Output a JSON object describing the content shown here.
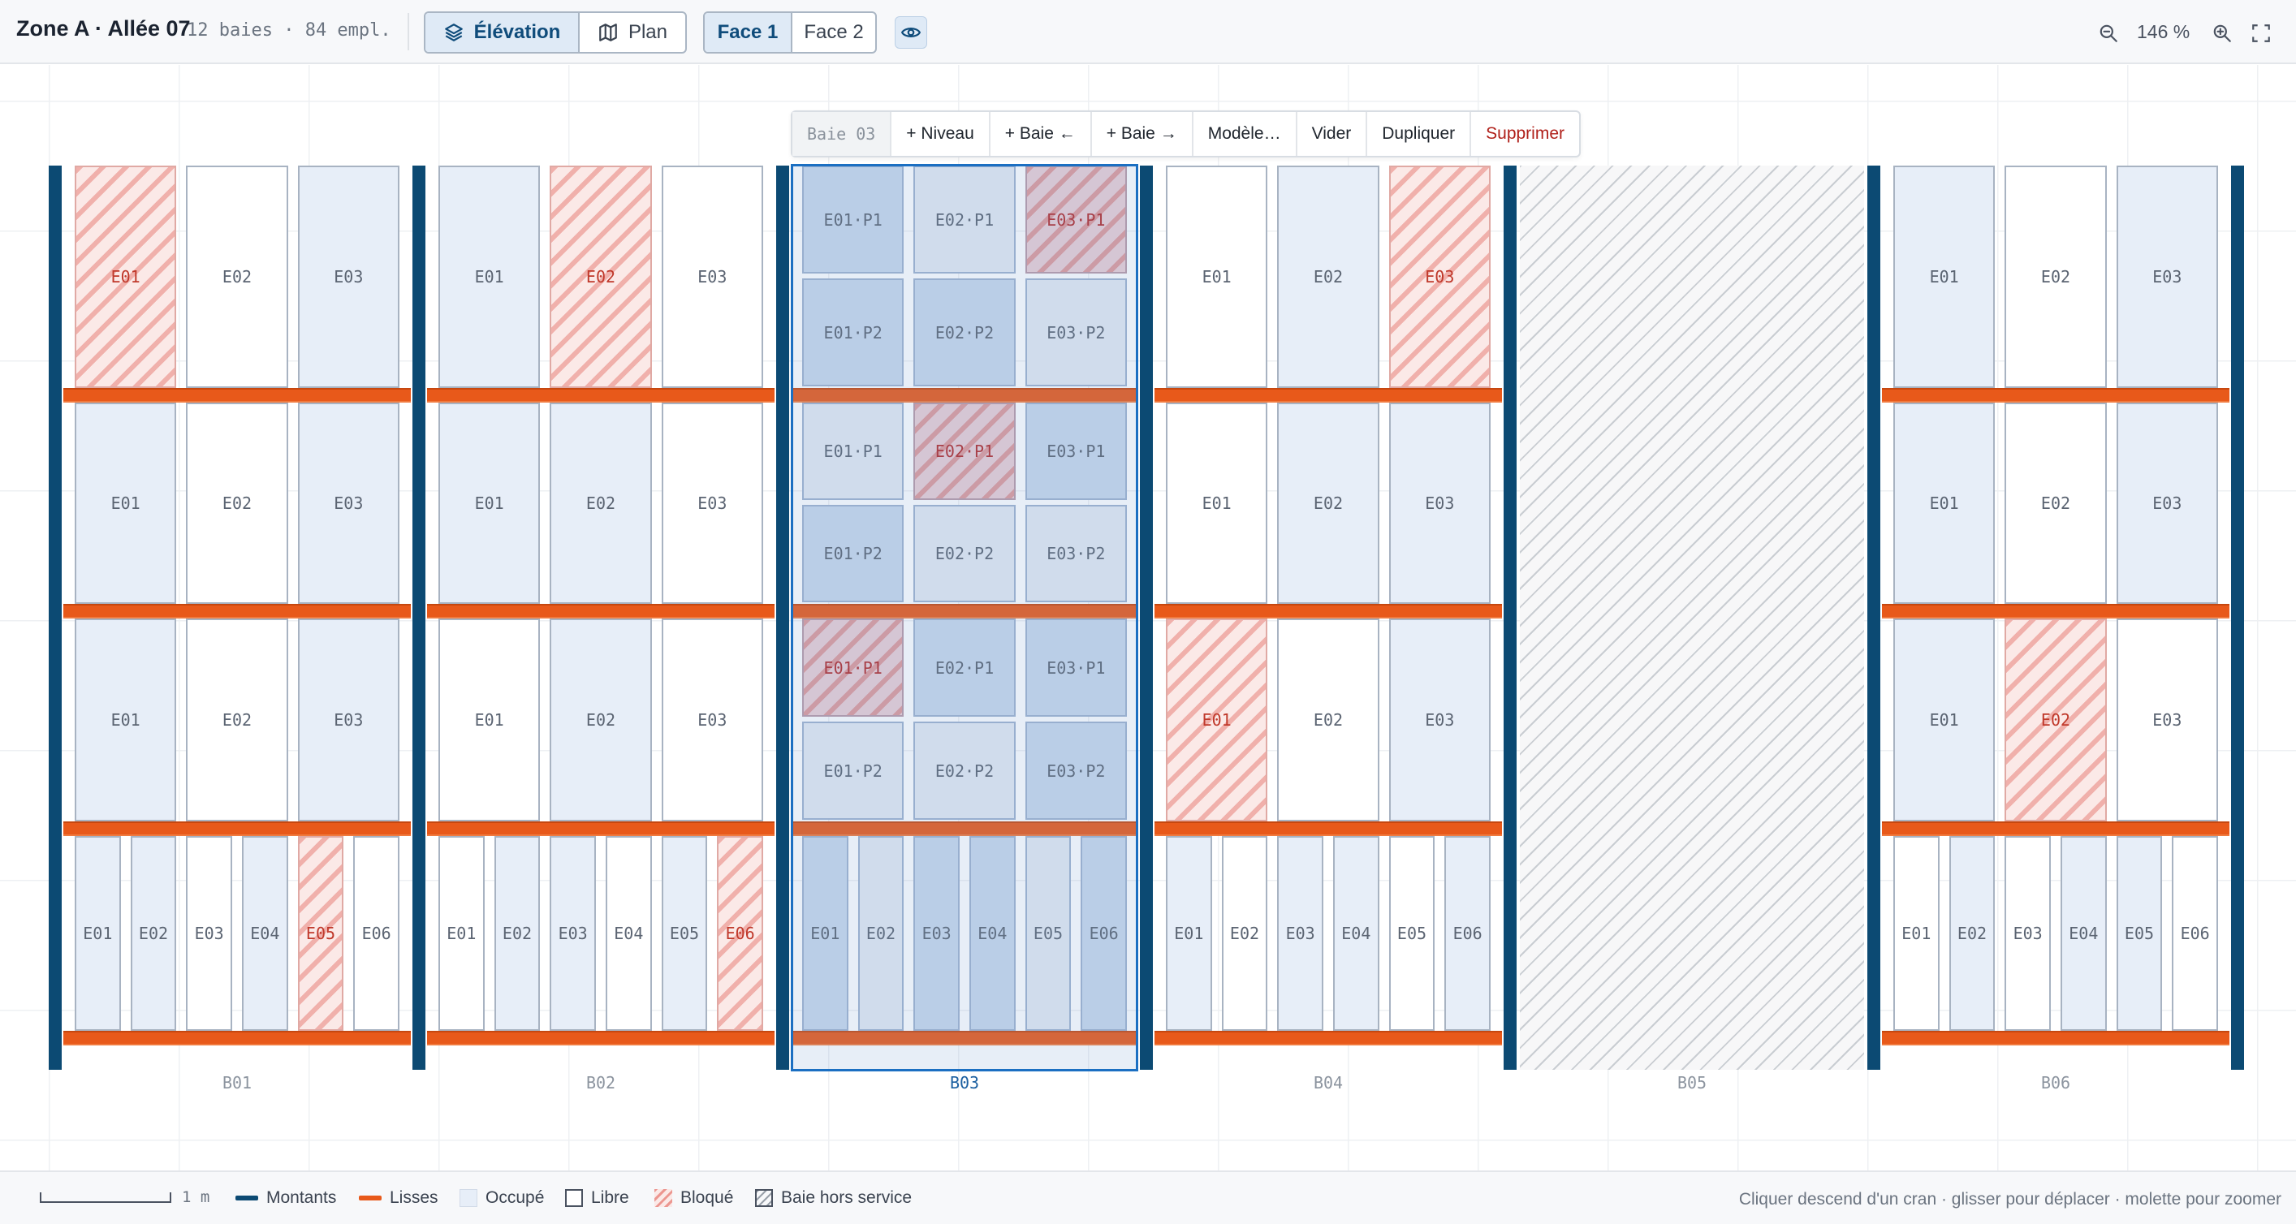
{
  "header": {
    "title": "Zone A · Allée 07",
    "subtitle": "12 baies · 84 empl.",
    "view_toggle": [
      {
        "label": "Élévation",
        "icon": "layers-icon",
        "active": true
      },
      {
        "label": "Plan",
        "icon": "map-icon",
        "active": false
      }
    ],
    "face_toggle": [
      {
        "label": "Face 1",
        "active": true
      },
      {
        "label": "Face 2",
        "active": false
      }
    ],
    "visibility_icon": "eye-icon",
    "zoom": {
      "level": "146 %",
      "out_icon": "zoom-out-icon",
      "in_icon": "zoom-in-icon",
      "fit_icon": "fullscreen-icon"
    }
  },
  "context_toolbar": {
    "bay": "Baie 03",
    "actions": [
      "+ Niveau",
      "+ Baie ←",
      "+ Baie →",
      "Modèle…",
      "Vider",
      "Dupliquer",
      "Supprimer"
    ]
  },
  "rack": {
    "selected_bay": "B03",
    "bays": [
      {
        "label": "B01",
        "out_of_service": false,
        "levels": [
          {
            "slots": [
              {
                "name": "E01",
                "status": "blocked"
              },
              {
                "name": "E02",
                "status": "free"
              },
              {
                "name": "E03",
                "status": "occupied"
              }
            ]
          },
          {
            "slots": [
              {
                "name": "E01",
                "status": "occupied"
              },
              {
                "name": "E02",
                "status": "free"
              },
              {
                "name": "E03",
                "status": "occupied"
              }
            ]
          },
          {
            "slots": [
              {
                "name": "E01",
                "status": "occupied"
              },
              {
                "name": "E02",
                "status": "free"
              },
              {
                "name": "E03",
                "status": "occupied"
              }
            ]
          },
          {
            "slots": [
              {
                "name": "E01",
                "status": "occupied"
              },
              {
                "name": "E02",
                "status": "occupied"
              },
              {
                "name": "E03",
                "status": "free"
              },
              {
                "name": "E04",
                "status": "occupied"
              },
              {
                "name": "E05",
                "status": "blocked"
              },
              {
                "name": "E06",
                "status": "free"
              }
            ]
          }
        ]
      },
      {
        "label": "B02",
        "out_of_service": false,
        "levels": [
          {
            "slots": [
              {
                "name": "E01",
                "status": "occupied"
              },
              {
                "name": "E02",
                "status": "blocked"
              },
              {
                "name": "E03",
                "status": "free"
              }
            ]
          },
          {
            "slots": [
              {
                "name": "E01",
                "status": "occupied"
              },
              {
                "name": "E02",
                "status": "occupied"
              },
              {
                "name": "E03",
                "status": "free"
              }
            ]
          },
          {
            "slots": [
              {
                "name": "E01",
                "status": "free"
              },
              {
                "name": "E02",
                "status": "occupied"
              },
              {
                "name": "E03",
                "status": "free"
              }
            ]
          },
          {
            "slots": [
              {
                "name": "E01",
                "status": "free"
              },
              {
                "name": "E02",
                "status": "occupied"
              },
              {
                "name": "E03",
                "status": "occupied"
              },
              {
                "name": "E04",
                "status": "free"
              },
              {
                "name": "E05",
                "status": "occupied"
              },
              {
                "name": "E06",
                "status": "blocked"
              }
            ]
          }
        ]
      },
      {
        "label": "B03",
        "out_of_service": false,
        "levels": [
          {
            "split": true,
            "slots": [
              {
                "name": "E01·P1",
                "status": "occupied"
              },
              {
                "name": "E02·P1",
                "status": "free"
              },
              {
                "name": "E03·P1",
                "status": "blocked"
              },
              {
                "name": "E01·P2",
                "status": "occupied"
              },
              {
                "name": "E02·P2",
                "status": "occupied"
              },
              {
                "name": "E03·P2",
                "status": "free"
              }
            ]
          },
          {
            "split": true,
            "slots": [
              {
                "name": "E01·P1",
                "status": "free"
              },
              {
                "name": "E02·P1",
                "status": "blocked"
              },
              {
                "name": "E03·P1",
                "status": "occupied"
              },
              {
                "name": "E01·P2",
                "status": "occupied"
              },
              {
                "name": "E02·P2",
                "status": "free"
              },
              {
                "name": "E03·P2",
                "status": "free"
              }
            ]
          },
          {
            "split": true,
            "slots": [
              {
                "name": "E01·P1",
                "status": "blocked"
              },
              {
                "name": "E02·P1",
                "status": "occupied"
              },
              {
                "name": "E03·P1",
                "status": "occupied"
              },
              {
                "name": "E01·P2",
                "status": "free"
              },
              {
                "name": "E02·P2",
                "status": "free"
              },
              {
                "name": "E03·P2",
                "status": "occupied"
              }
            ]
          },
          {
            "slots": [
              {
                "name": "E01",
                "status": "occupied"
              },
              {
                "name": "E02",
                "status": "free"
              },
              {
                "name": "E03",
                "status": "occupied"
              },
              {
                "name": "E04",
                "status": "occupied"
              },
              {
                "name": "E05",
                "status": "free"
              },
              {
                "name": "E06",
                "status": "occupied"
              }
            ]
          }
        ]
      },
      {
        "label": "B04",
        "out_of_service": false,
        "levels": [
          {
            "slots": [
              {
                "name": "E01",
                "status": "free"
              },
              {
                "name": "E02",
                "status": "occupied"
              },
              {
                "name": "E03",
                "status": "blocked"
              }
            ]
          },
          {
            "slots": [
              {
                "name": "E01",
                "status": "free"
              },
              {
                "name": "E02",
                "status": "occupied"
              },
              {
                "name": "E03",
                "status": "occupied"
              }
            ]
          },
          {
            "slots": [
              {
                "name": "E01",
                "status": "blocked"
              },
              {
                "name": "E02",
                "status": "free"
              },
              {
                "name": "E03",
                "status": "occupied"
              }
            ]
          },
          {
            "slots": [
              {
                "name": "E01",
                "status": "occupied"
              },
              {
                "name": "E02",
                "status": "free"
              },
              {
                "name": "E03",
                "status": "occupied"
              },
              {
                "name": "E04",
                "status": "occupied"
              },
              {
                "name": "E05",
                "status": "free"
              },
              {
                "name": "E06",
                "status": "occupied"
              }
            ]
          }
        ]
      },
      {
        "label": "B05",
        "out_of_service": true,
        "levels": []
      },
      {
        "label": "B06",
        "out_of_service": false,
        "levels": [
          {
            "slots": [
              {
                "name": "E01",
                "status": "occupied"
              },
              {
                "name": "E02",
                "status": "free"
              },
              {
                "name": "E03",
                "status": "occupied"
              }
            ]
          },
          {
            "slots": [
              {
                "name": "E01",
                "status": "occupied"
              },
              {
                "name": "E02",
                "status": "free"
              },
              {
                "name": "E03",
                "status": "occupied"
              }
            ]
          },
          {
            "slots": [
              {
                "name": "E01",
                "status": "occupied"
              },
              {
                "name": "E02",
                "status": "blocked"
              },
              {
                "name": "E03",
                "status": "free"
              }
            ]
          },
          {
            "slots": [
              {
                "name": "E01",
                "status": "free"
              },
              {
                "name": "E02",
                "status": "occupied"
              },
              {
                "name": "E03",
                "status": "free"
              },
              {
                "name": "E04",
                "status": "occupied"
              },
              {
                "name": "E05",
                "status": "occupied"
              },
              {
                "name": "E06",
                "status": "free"
              }
            ]
          }
        ]
      }
    ]
  },
  "footer": {
    "scale": "1 m",
    "legend": [
      {
        "label": "Montants",
        "color": "#0c4a73"
      },
      {
        "label": "Lisses",
        "color": "#e8591a"
      },
      {
        "label": "Occupé",
        "color": "#e7eef8"
      },
      {
        "label": "Libre",
        "color": "#ffffff"
      },
      {
        "label": "Bloqué",
        "color": "#e8827a"
      },
      {
        "label": "Baie hors service",
        "color": "#c9cdd2"
      }
    ],
    "hint": "Cliquer descend d'un cran · glisser pour déplacer · molette pour zoomer"
  }
}
